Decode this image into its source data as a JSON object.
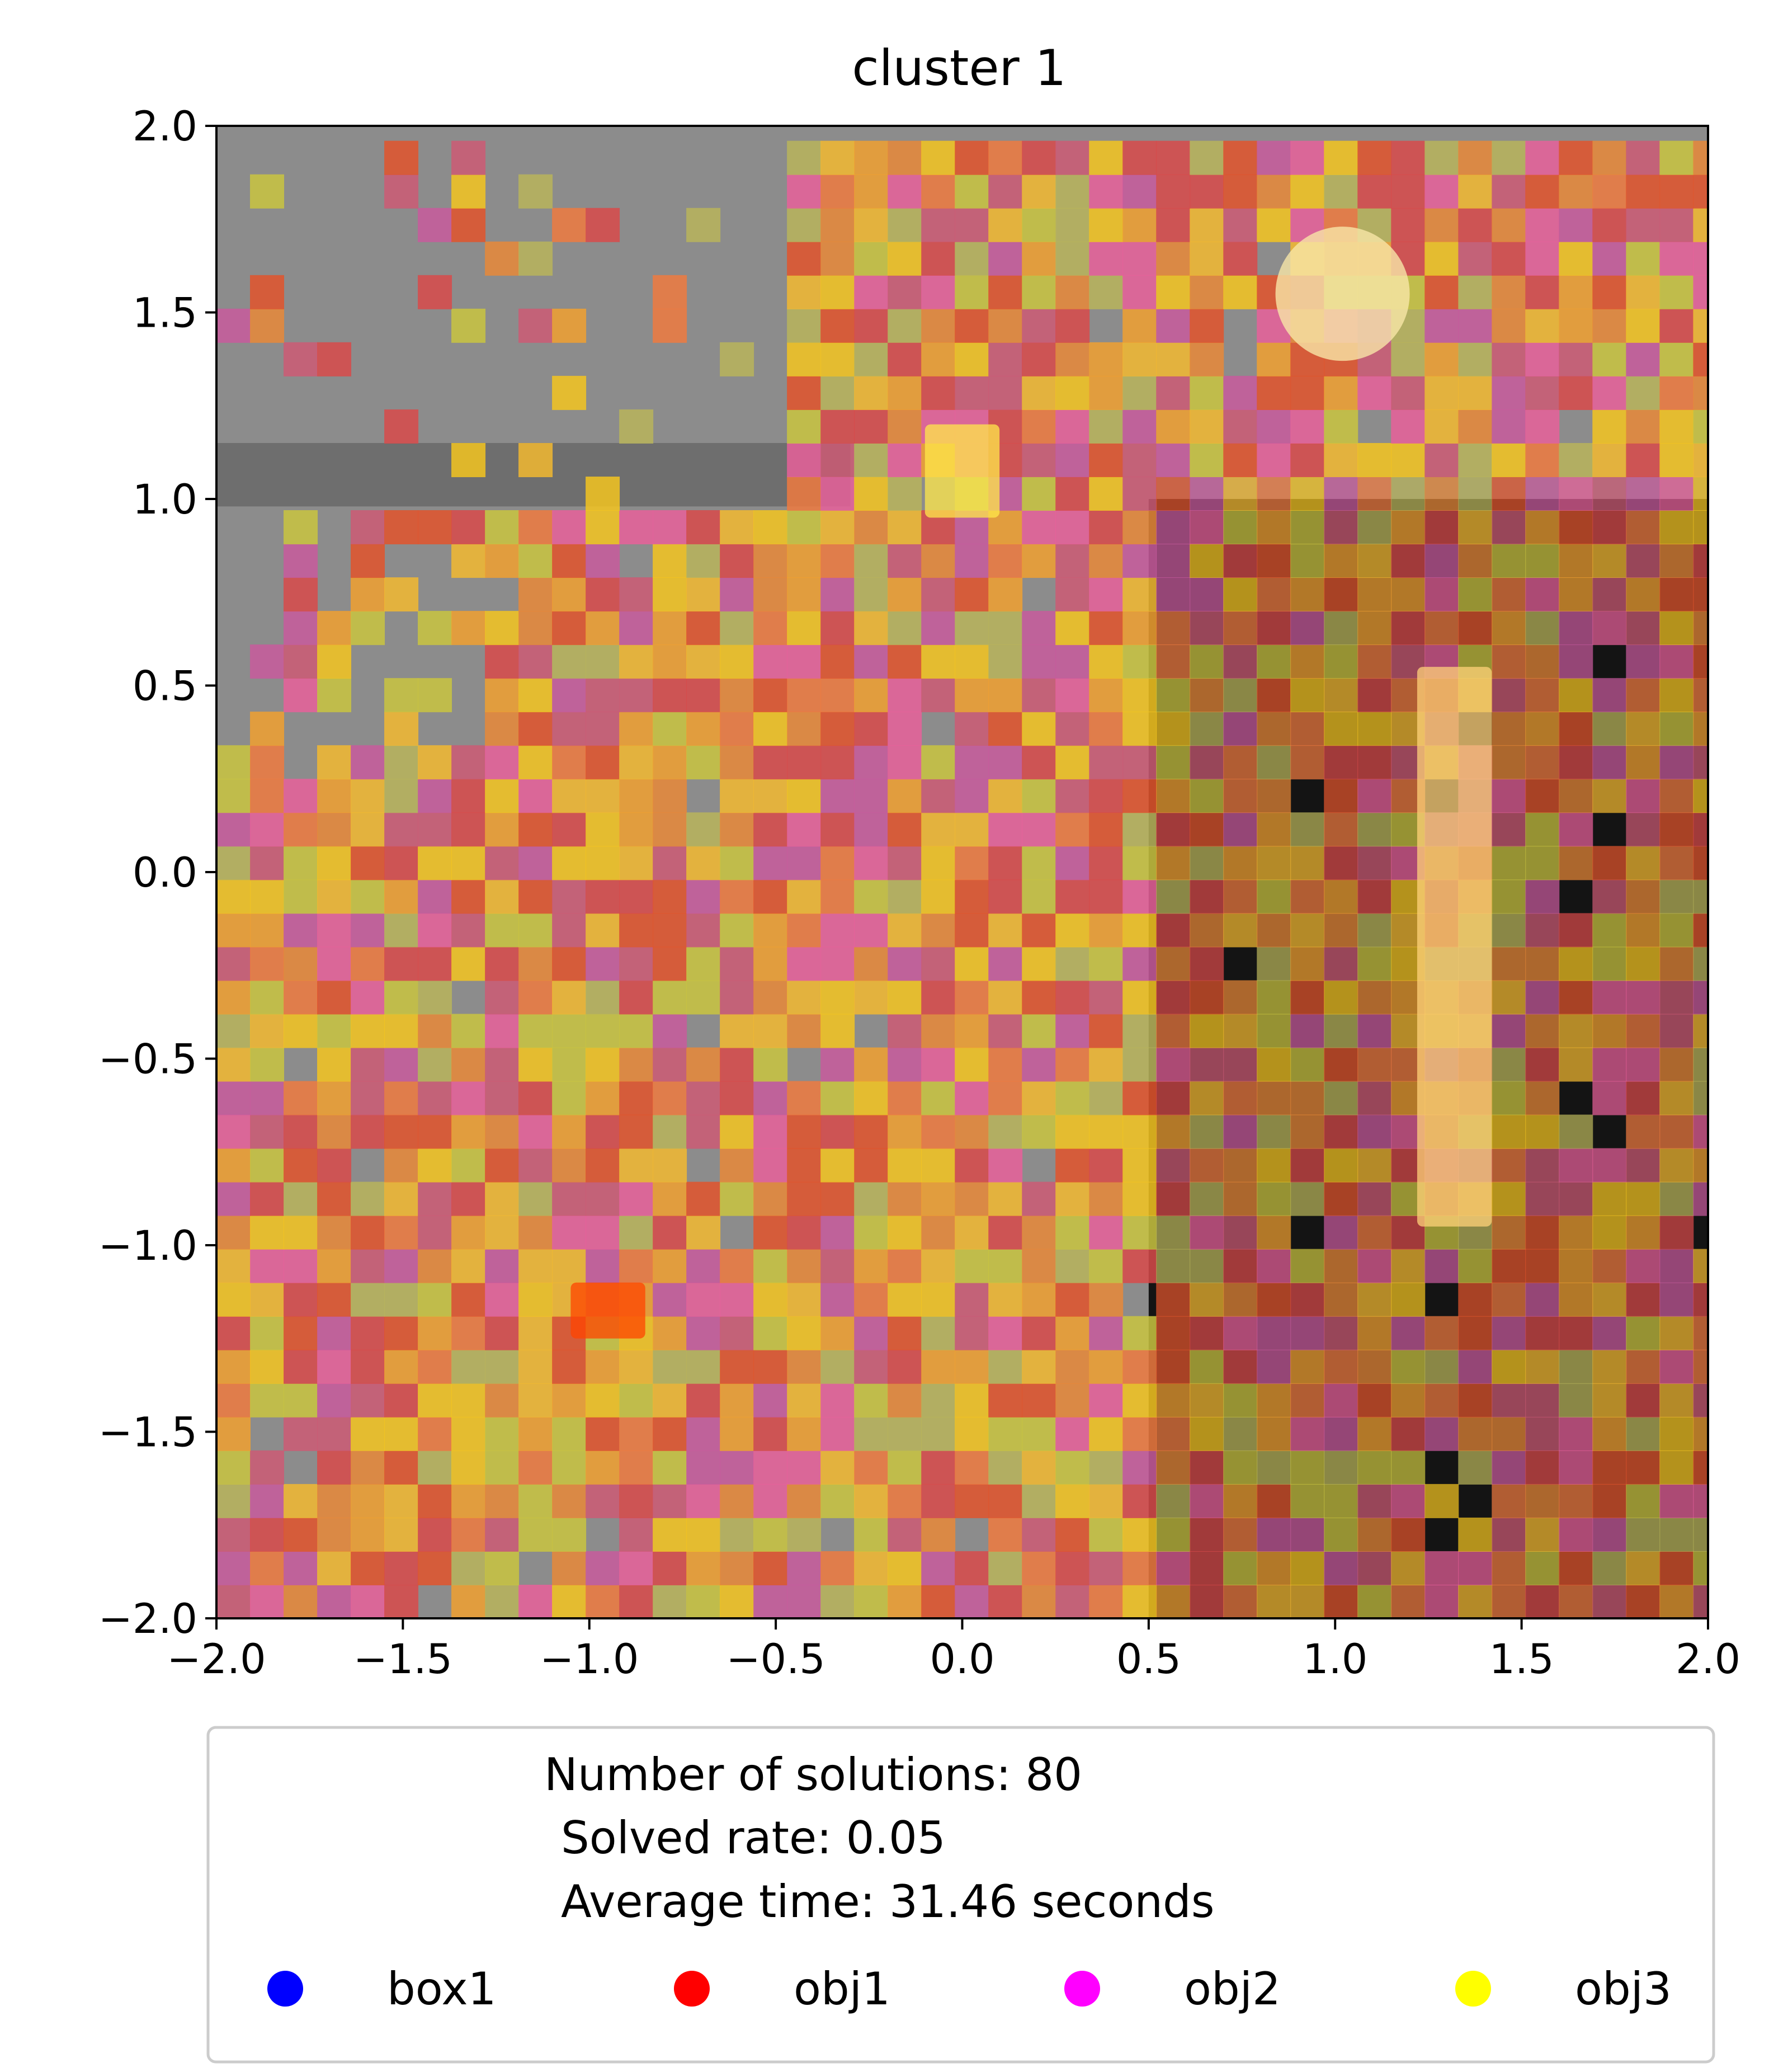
{
  "chart_data": {
    "type": "heatmap",
    "title": "cluster 1",
    "xlabel": "",
    "ylabel": "",
    "xlim": [
      -2.0,
      2.0
    ],
    "ylim": [
      -2.0,
      2.0
    ],
    "x_ticks": [
      "−2.0",
      "−1.5",
      "−1.0",
      "−0.5",
      "0.0",
      "0.5",
      "1.0",
      "1.5",
      "2.0"
    ],
    "y_ticks": [
      "−2.0",
      "−1.5",
      "−1.0",
      "−0.5",
      "0.0",
      "0.5",
      "1.0",
      "1.5",
      "2.0"
    ],
    "grid": false,
    "legend": {
      "placement": "below plot",
      "summary": [
        "Number of solutions: 80",
        "Solved rate: 0.05",
        "Average time: 31.46 seconds"
      ],
      "entries": [
        {
          "name": "box1",
          "color": "#0000ff"
        },
        {
          "name": "obj1",
          "color": "#ff0000"
        },
        {
          "name": "obj2",
          "color": "#ff00ff"
        },
        {
          "name": "obj3",
          "color": "#ffff00"
        }
      ]
    },
    "background_regions": [
      {
        "name": "scene-floor",
        "x": [
          -2.0,
          2.0
        ],
        "y": [
          -2.0,
          2.0
        ],
        "color": "#8c8c8c"
      },
      {
        "name": "dark-shelf",
        "x": [
          0.5,
          2.0
        ],
        "y": [
          -2.0,
          1.0
        ],
        "color": "#141414"
      },
      {
        "name": "table-edge",
        "x": [
          -2.0,
          -0.3
        ],
        "y": [
          0.98,
          1.15
        ],
        "color": "#6e6e6e"
      }
    ],
    "heat_region": {
      "x": [
        -2.0,
        2.0
      ],
      "y": [
        -2.0,
        1.9
      ],
      "cell_size": 0.09,
      "palette": [
        "#b8b45a",
        "#c9c440",
        "#d84a4a",
        "#cc5a74",
        "#f0a030",
        "#f2b830",
        "#e88838",
        "#ef7a40",
        "#f3c420",
        "#e2542c",
        "#c85a9c",
        "#e8609a"
      ]
    },
    "highlights": [
      {
        "name": "sphere-object",
        "x": 1.02,
        "y": 1.55,
        "color": "#f7e6a8"
      },
      {
        "name": "bar-object",
        "x": [
          1.22,
          1.42
        ],
        "y": [
          -0.95,
          0.55
        ],
        "color": "#ffd27a"
      },
      {
        "name": "orange-block",
        "x": [
          -1.05,
          -0.85
        ],
        "y": [
          -1.25,
          -1.1
        ],
        "color": "#ff4400"
      },
      {
        "name": "yellow-tab",
        "x": [
          -0.1,
          0.1
        ],
        "y": [
          0.95,
          1.2
        ],
        "color": "#ffe84a"
      }
    ]
  }
}
